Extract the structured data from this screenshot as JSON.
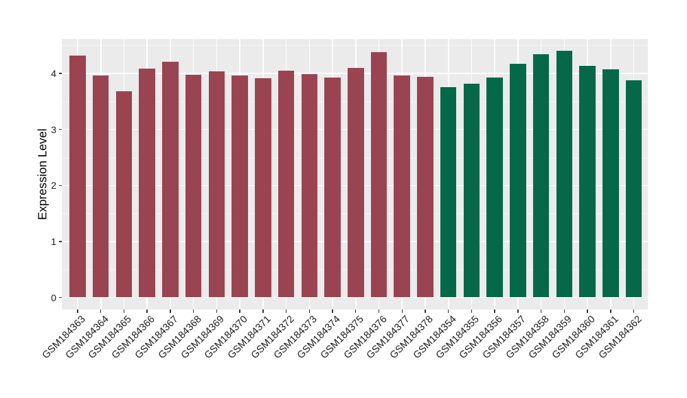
{
  "chart": {
    "panel_bg": "#EBEBEB",
    "grid_major_color": "#FFFFFF",
    "grid_minor_color": "rgba(255,255,255,0.55)",
    "axis_text_color": "#1A1A1A",
    "tick_color": "#333333",
    "background": "#FFFFFF"
  },
  "chart_data": {
    "type": "bar",
    "title": "",
    "xlabel": "",
    "ylabel": "Expression Level",
    "ylim": [
      -0.21,
      4.61
    ],
    "yticks": [
      0,
      1,
      2,
      3,
      4
    ],
    "yminor": [
      0.5,
      1.5,
      2.5,
      3.5,
      4.5
    ],
    "grid": true,
    "legend": "none",
    "groups": [
      {
        "name": "samples-GSM184363-GSM184378",
        "color": "#9A4351"
      },
      {
        "name": "samples-GSM184354-GSM184362",
        "color": "#046849"
      }
    ],
    "bars": [
      {
        "label": "GSM184363",
        "value": 4.32,
        "group": 0
      },
      {
        "label": "GSM184364",
        "value": 3.97,
        "group": 0
      },
      {
        "label": "GSM184365",
        "value": 3.68,
        "group": 0
      },
      {
        "label": "GSM184366",
        "value": 4.09,
        "group": 0
      },
      {
        "label": "GSM184367",
        "value": 4.21,
        "group": 0
      },
      {
        "label": "GSM184368",
        "value": 3.98,
        "group": 0
      },
      {
        "label": "GSM184369",
        "value": 4.04,
        "group": 0
      },
      {
        "label": "GSM184370",
        "value": 3.96,
        "group": 0
      },
      {
        "label": "GSM184371",
        "value": 3.92,
        "group": 0
      },
      {
        "label": "GSM184372",
        "value": 4.05,
        "group": 0
      },
      {
        "label": "GSM184373",
        "value": 3.99,
        "group": 0
      },
      {
        "label": "GSM184374",
        "value": 3.93,
        "group": 0
      },
      {
        "label": "GSM184375",
        "value": 4.1,
        "group": 0
      },
      {
        "label": "GSM184376",
        "value": 4.38,
        "group": 0
      },
      {
        "label": "GSM184377",
        "value": 3.97,
        "group": 0
      },
      {
        "label": "GSM184378",
        "value": 3.94,
        "group": 0
      },
      {
        "label": "GSM184354",
        "value": 3.76,
        "group": 1
      },
      {
        "label": "GSM184355",
        "value": 3.82,
        "group": 1
      },
      {
        "label": "GSM184356",
        "value": 3.93,
        "group": 1
      },
      {
        "label": "GSM184357",
        "value": 4.17,
        "group": 1
      },
      {
        "label": "GSM184358",
        "value": 4.35,
        "group": 1
      },
      {
        "label": "GSM184359",
        "value": 4.4,
        "group": 1
      },
      {
        "label": "GSM184360",
        "value": 4.14,
        "group": 1
      },
      {
        "label": "GSM184361",
        "value": 4.08,
        "group": 1
      },
      {
        "label": "GSM184362",
        "value": 3.88,
        "group": 1
      }
    ]
  }
}
